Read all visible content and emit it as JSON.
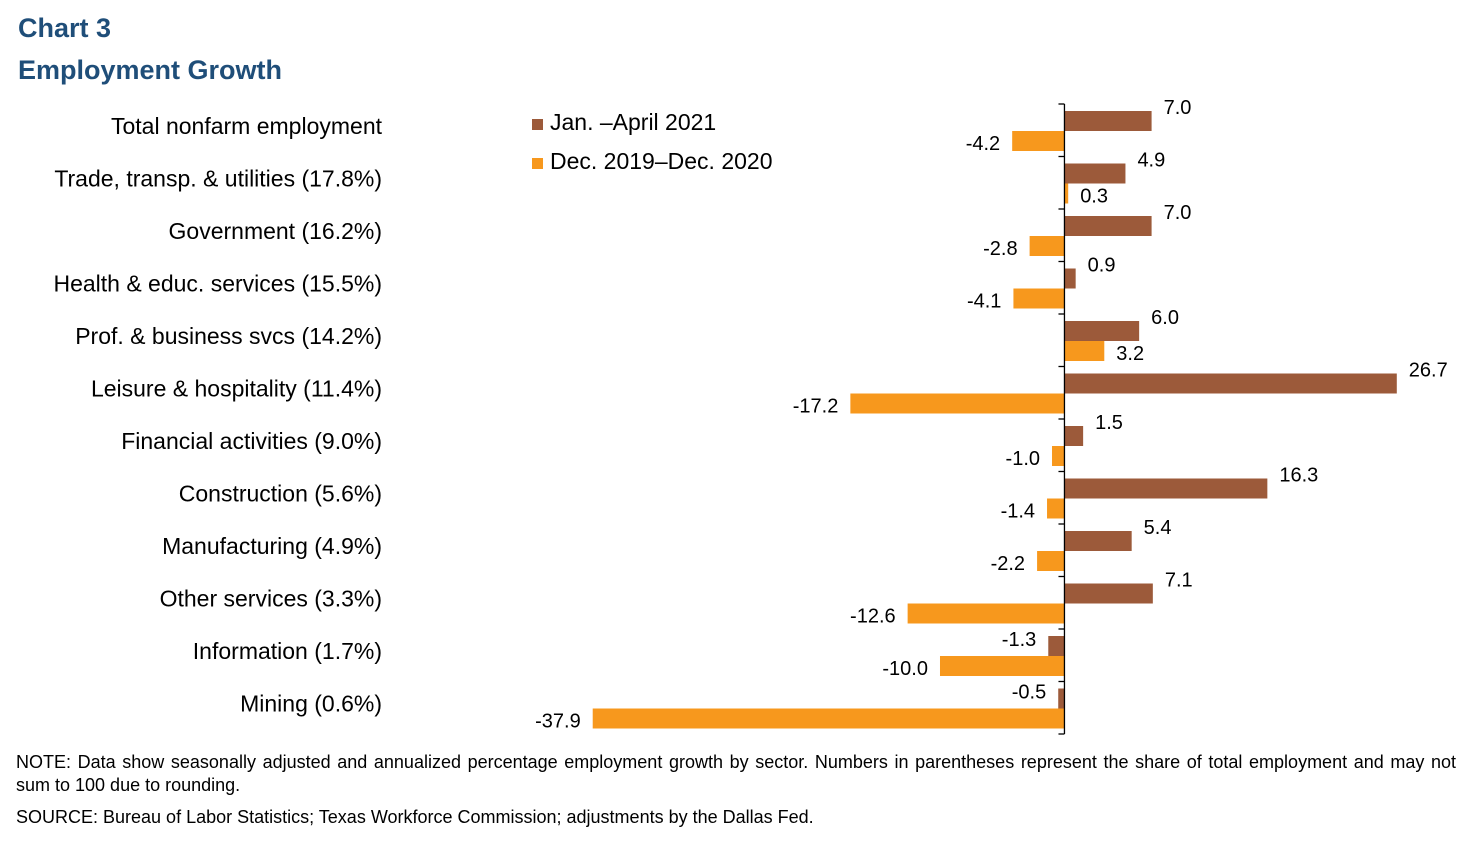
{
  "header": {
    "chart_label": "Chart 3",
    "title": "Employment Growth"
  },
  "footer": {
    "note": "NOTE: Data show seasonally adjusted and annualized percentage employment growth by sector. Numbers in parentheses represent the share of total employment and may not sum to 100 due to rounding.",
    "source": "SOURCE: Bureau of Labor Statistics; Texas Workforce Commission; adjustments by the Dallas Fed."
  },
  "chart_data": {
    "type": "bar",
    "orientation": "horizontal",
    "title": "Employment Growth",
    "xlabel": "",
    "ylabel": "",
    "xlim": [
      -38.6,
      27.6
    ],
    "grid": false,
    "legend_position": "top-left",
    "categories": [
      "Total nonfarm employment",
      "Trade, transp. & utilities (17.8%)",
      "Government (16.2%)",
      "Health & educ. services (15.5%)",
      "Prof. & business svcs (14.2%)",
      "Leisure & hospitality (11.4%)",
      "Financial activities (9.0%)",
      "Construction (5.6%)",
      "Manufacturing (4.9%)",
      "Other services (3.3%)",
      "Information (1.7%)",
      "Mining (0.6%)"
    ],
    "series": [
      {
        "name": "Jan. –April 2021",
        "color": "#9C5A3A",
        "values": [
          7.0,
          4.9,
          7.0,
          0.9,
          6.0,
          26.7,
          1.5,
          16.3,
          5.4,
          7.1,
          -1.3,
          -0.5
        ],
        "labels": [
          "7.0",
          "4.9",
          "7.0",
          "0.9",
          "6.0",
          "26.7",
          "1.5",
          "16.3",
          "5.4",
          "7.1",
          "-1.3",
          "-0.5"
        ]
      },
      {
        "name": "Dec. 2019–Dec. 2020",
        "color": "#F7981D",
        "values": [
          -4.2,
          0.3,
          -2.8,
          -4.1,
          3.2,
          -17.2,
          -1.0,
          -1.4,
          -2.2,
          -12.6,
          -10.0,
          -37.9
        ],
        "labels": [
          "-4.2",
          "0.3",
          "-2.8",
          "-4.1",
          "3.2",
          "-17.2",
          "-1.0",
          "-1.4",
          "-2.2",
          "-12.6",
          "-10.0",
          "-37.9"
        ]
      }
    ]
  }
}
